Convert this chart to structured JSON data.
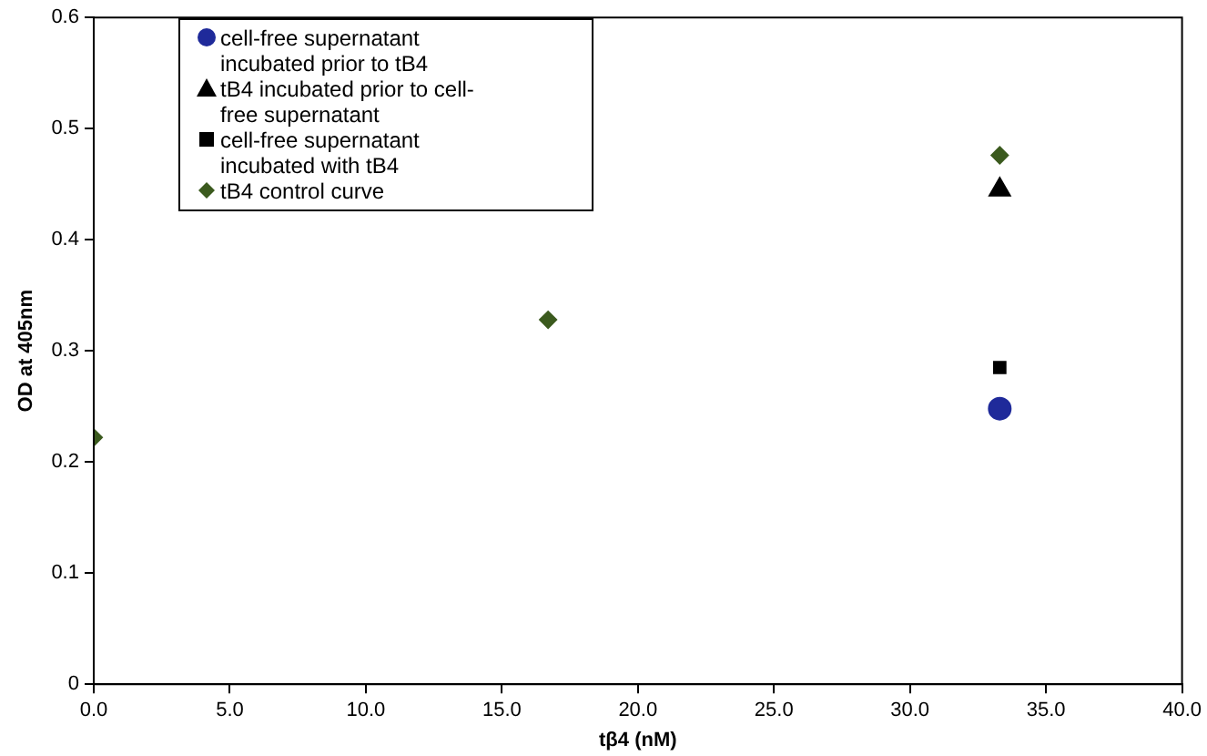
{
  "chart_data": {
    "type": "scatter",
    "xlabel": "tβ4 (nM)",
    "ylabel": "OD at 405nm",
    "xlim": [
      0,
      40
    ],
    "xticks": [
      {
        "value": 0,
        "label": "0.0"
      },
      {
        "value": 5,
        "label": "5.0"
      },
      {
        "value": 10,
        "label": "10.0"
      },
      {
        "value": 15,
        "label": "15.0"
      },
      {
        "value": 20,
        "label": "20.0"
      },
      {
        "value": 25,
        "label": "25.0"
      },
      {
        "value": 30,
        "label": "30.0"
      },
      {
        "value": 35,
        "label": "35.0"
      },
      {
        "value": 40,
        "label": "40.0"
      }
    ],
    "ylim": [
      0,
      0.6
    ],
    "yticks": [
      0,
      0.1,
      0.2,
      0.3,
      0.4,
      0.5,
      0.6
    ],
    "grid": false,
    "legend": "top left",
    "series": [
      {
        "name": "cell-free supernatant incubated prior to tB4",
        "color": "#1f2a9a",
        "marker": "circle",
        "x": [
          33.3
        ],
        "values": [
          0.248
        ]
      },
      {
        "name": "tB4 incubated prior to cell-free supernatant",
        "color": "#000000",
        "marker": "triangle",
        "x": [
          33.3
        ],
        "values": [
          0.445
        ]
      },
      {
        "name": "cell-free supernatant incubated with tB4",
        "color": "#000000",
        "marker": "square",
        "x": [
          33.3
        ],
        "values": [
          0.285
        ]
      },
      {
        "name": "tB4 control curve",
        "color": "#3b5a1e",
        "marker": "diamond",
        "x": [
          0,
          16.7,
          33.3
        ],
        "values": [
          0.222,
          0.328,
          0.476
        ]
      }
    ]
  }
}
